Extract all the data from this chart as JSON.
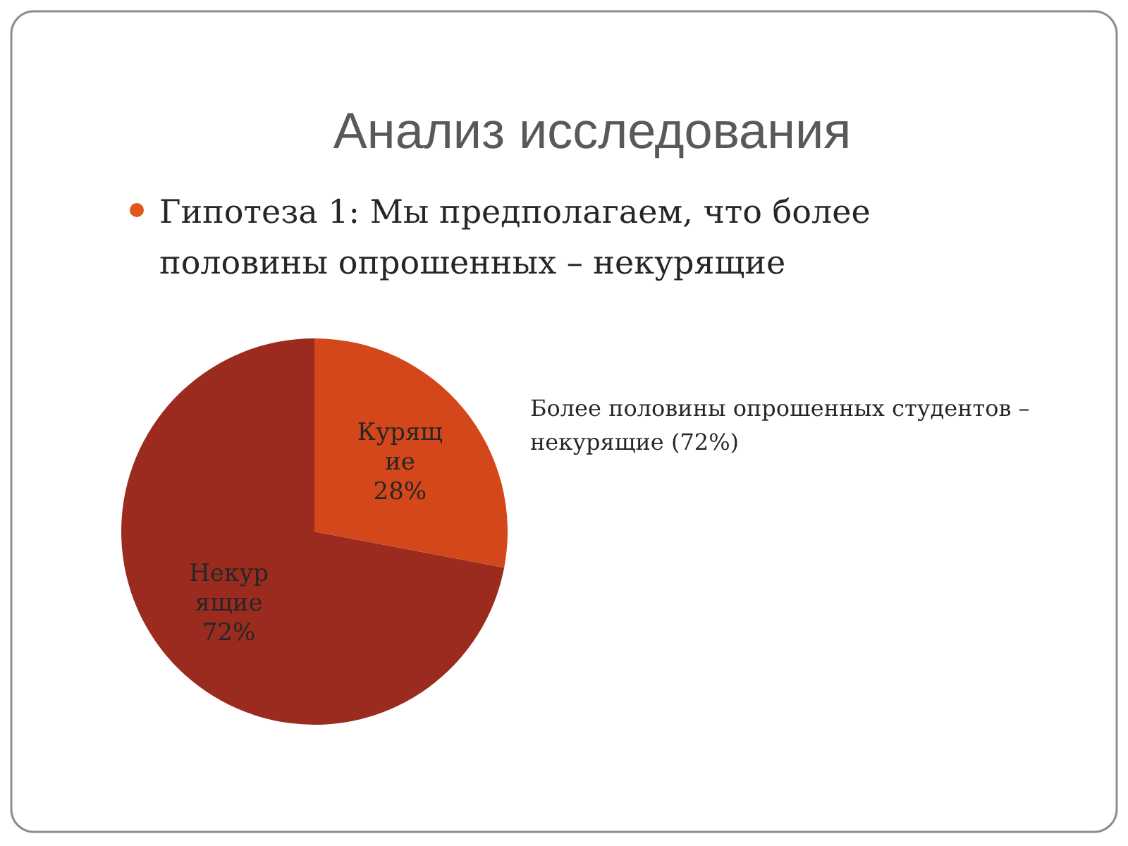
{
  "chart_data": {
    "type": "pie",
    "title": "Анализ исследования",
    "subtitle": "Гипотеза 1: Мы предполагаем, что более половины опрошенных – некурящие",
    "categories": [
      "Курящие",
      "Некурящие"
    ],
    "values": [
      28,
      72
    ],
    "colors": [
      "#d3471b",
      "#9b2b1f"
    ],
    "value_labels": [
      "28%",
      "72%"
    ],
    "annotations": [
      "Более половины опрошенных студентов – некурящие (72%)"
    ],
    "legend": false
  }
}
